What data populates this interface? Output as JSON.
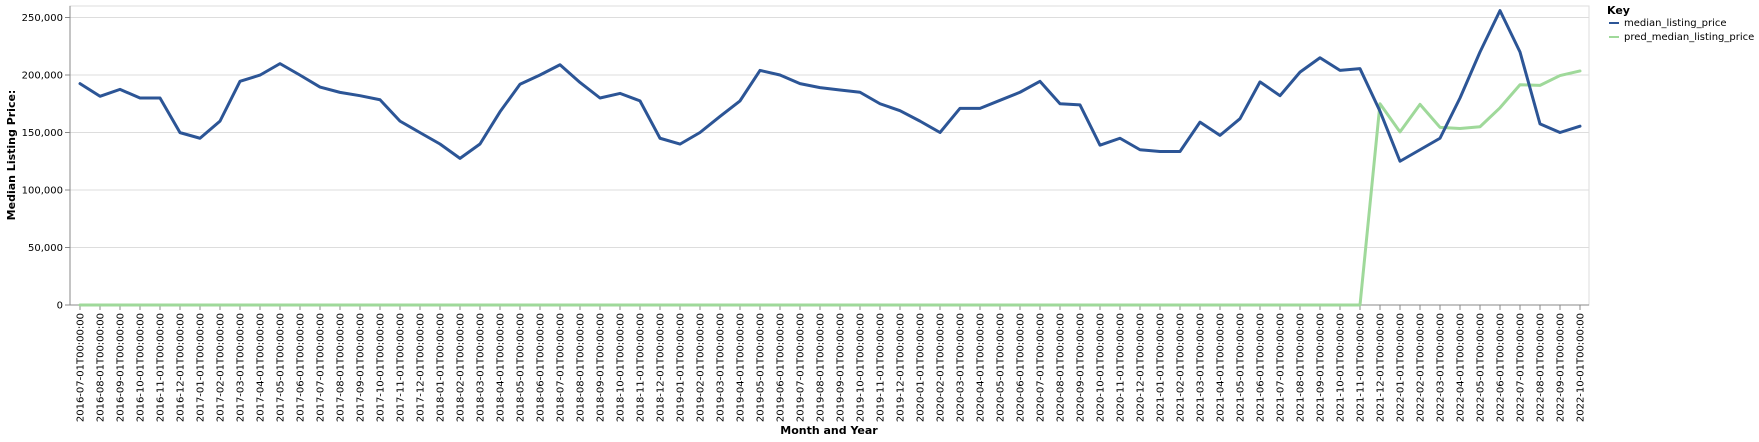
{
  "chart_data": {
    "type": "line",
    "title": "",
    "xlabel": "Month and Year",
    "ylabel": "Median Listing Price:",
    "ylim": [
      0,
      260000
    ],
    "y_ticks": [
      0,
      50000,
      100000,
      150000,
      200000,
      250000
    ],
    "y_tick_labels": [
      "0",
      "50,000",
      "100,000",
      "150,000",
      "200,000",
      "250,000"
    ],
    "grid": true,
    "legend": {
      "title": "Key",
      "placement": "top-right"
    },
    "categories": [
      "2016-07-01T00:00:00",
      "2016-08-01T00:00:00",
      "2016-09-01T00:00:00",
      "2016-10-01T00:00:00",
      "2016-11-01T00:00:00",
      "2016-12-01T00:00:00",
      "2017-01-01T00:00:00",
      "2017-02-01T00:00:00",
      "2017-03-01T00:00:00",
      "2017-04-01T00:00:00",
      "2017-05-01T00:00:00",
      "2017-06-01T00:00:00",
      "2017-07-01T00:00:00",
      "2017-08-01T00:00:00",
      "2017-09-01T00:00:00",
      "2017-10-01T00:00:00",
      "2017-11-01T00:00:00",
      "2017-12-01T00:00:00",
      "2018-01-01T00:00:00",
      "2018-02-01T00:00:00",
      "2018-03-01T00:00:00",
      "2018-04-01T00:00:00",
      "2018-05-01T00:00:00",
      "2018-06-01T00:00:00",
      "2018-07-01T00:00:00",
      "2018-08-01T00:00:00",
      "2018-09-01T00:00:00",
      "2018-10-01T00:00:00",
      "2018-11-01T00:00:00",
      "2018-12-01T00:00:00",
      "2019-01-01T00:00:00",
      "2019-02-01T00:00:00",
      "2019-03-01T00:00:00",
      "2019-04-01T00:00:00",
      "2019-05-01T00:00:00",
      "2019-06-01T00:00:00",
      "2019-07-01T00:00:00",
      "2019-08-01T00:00:00",
      "2019-09-01T00:00:00",
      "2019-10-01T00:00:00",
      "2019-11-01T00:00:00",
      "2019-12-01T00:00:00",
      "2020-01-01T00:00:00",
      "2020-02-01T00:00:00",
      "2020-03-01T00:00:00",
      "2020-04-01T00:00:00",
      "2020-05-01T00:00:00",
      "2020-06-01T00:00:00",
      "2020-07-01T00:00:00",
      "2020-08-01T00:00:00",
      "2020-09-01T00:00:00",
      "2020-10-01T00:00:00",
      "2020-11-01T00:00:00",
      "2020-12-01T00:00:00",
      "2021-01-01T00:00:00",
      "2021-02-01T00:00:00",
      "2021-03-01T00:00:00",
      "2021-04-01T00:00:00",
      "2021-05-01T00:00:00",
      "2021-06-01T00:00:00",
      "2021-07-01T00:00:00",
      "2021-08-01T00:00:00",
      "2021-09-01T00:00:00",
      "2021-10-01T00:00:00",
      "2021-11-01T00:00:00",
      "2021-12-01T00:00:00",
      "2022-01-01T00:00:00",
      "2022-02-01T00:00:00",
      "2022-03-01T00:00:00",
      "2022-04-01T00:00:00",
      "2022-05-01T00:00:00",
      "2022-06-01T00:00:00",
      "2022-07-01T00:00:00",
      "2022-08-01T00:00:00",
      "2022-09-01T00:00:00",
      "2022-10-01T00:00:00"
    ],
    "series": [
      {
        "name": "median_listing_price",
        "color": "#2c5596",
        "values": [
          192500,
          181500,
          187500,
          180000,
          180000,
          149900,
          145000,
          159900,
          194500,
          199900,
          209900,
          199900,
          189500,
          184900,
          182000,
          178500,
          159900,
          149900,
          140000,
          127500,
          140000,
          168000,
          192000,
          200000,
          208900,
          193500,
          180000,
          184000,
          177500,
          145000,
          139900,
          150000,
          164000,
          177500,
          204000,
          200000,
          192500,
          189000,
          187000,
          185000,
          175000,
          169000,
          159900,
          150000,
          171000,
          171000,
          178000,
          185000,
          194500,
          175000,
          174000,
          139000,
          145000,
          135000,
          133500,
          133500,
          159000,
          147500,
          162000,
          194000,
          182000,
          202500,
          215000,
          204000,
          205500,
          168500,
          125000,
          135000,
          145000,
          180000,
          220000,
          256000,
          220000,
          157500,
          150000,
          155500
        ]
      },
      {
        "name": "pred_median_listing_price",
        "color": "#9fd99a",
        "values": [
          0,
          0,
          0,
          0,
          0,
          0,
          0,
          0,
          0,
          0,
          0,
          0,
          0,
          0,
          0,
          0,
          0,
          0,
          0,
          0,
          0,
          0,
          0,
          0,
          0,
          0,
          0,
          0,
          0,
          0,
          0,
          0,
          0,
          0,
          0,
          0,
          0,
          0,
          0,
          0,
          0,
          0,
          0,
          0,
          0,
          0,
          0,
          0,
          0,
          0,
          0,
          0,
          0,
          0,
          0,
          0,
          0,
          0,
          0,
          0,
          0,
          0,
          0,
          0,
          0,
          175000,
          150500,
          174500,
          154500,
          153500,
          155000,
          171500,
          191500,
          191000,
          199500,
          203500
        ]
      }
    ]
  }
}
